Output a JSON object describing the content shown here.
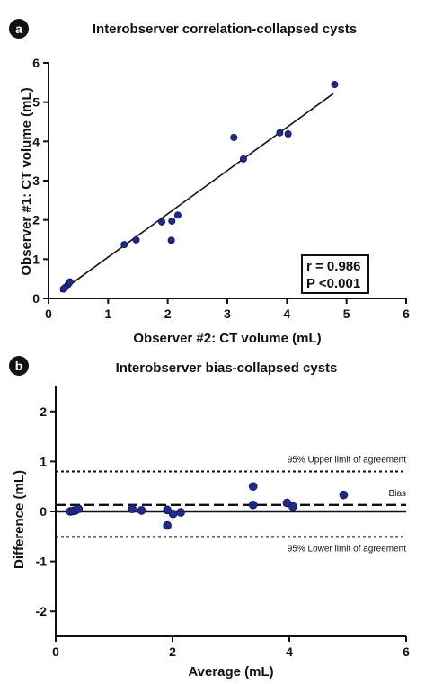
{
  "chart_data": [
    {
      "panel": "a",
      "type": "scatter",
      "title": "Interobserver correlation-collapsed cysts",
      "xlabel": "Observer #2: CT volume (mL)",
      "ylabel": "Observer #1: CT volume (mL)",
      "xlim": [
        0,
        6
      ],
      "ylim": [
        0,
        6
      ],
      "xticks": [
        "0",
        "1",
        "2",
        "3",
        "4",
        "5",
        "6"
      ],
      "yticks": [
        "0",
        "1",
        "2",
        "3",
        "4",
        "5",
        "6"
      ],
      "grid": false,
      "point_color": "#1f2a8c",
      "points": [
        {
          "x": 0.25,
          "y": 0.24
        },
        {
          "x": 0.28,
          "y": 0.28
        },
        {
          "x": 0.33,
          "y": 0.36
        },
        {
          "x": 0.36,
          "y": 0.42
        },
        {
          "x": 1.27,
          "y": 1.37
        },
        {
          "x": 1.47,
          "y": 1.49
        },
        {
          "x": 1.9,
          "y": 1.95
        },
        {
          "x": 2.07,
          "y": 1.97
        },
        {
          "x": 2.06,
          "y": 1.48
        },
        {
          "x": 2.17,
          "y": 2.12
        },
        {
          "x": 3.11,
          "y": 4.1
        },
        {
          "x": 3.27,
          "y": 3.55
        },
        {
          "x": 3.88,
          "y": 4.22
        },
        {
          "x": 4.02,
          "y": 4.19
        },
        {
          "x": 4.8,
          "y": 5.45
        }
      ],
      "fit_line": {
        "x": [
          0.2,
          4.78
        ],
        "y": [
          0.17,
          5.22
        ]
      },
      "stats": {
        "r": "r = 0.986",
        "p": "P <0.001"
      }
    },
    {
      "panel": "b",
      "type": "scatter",
      "title": "Interobserver bias-collapsed cysts",
      "xlabel": "Average (mL)",
      "ylabel": "Difference (mL)",
      "xlim": [
        0,
        6
      ],
      "ylim": [
        -2.5,
        2.5
      ],
      "xticks": [
        "0",
        "2",
        "4",
        "6"
      ],
      "yticks": [
        "-2",
        "-1",
        "0",
        "1",
        "2"
      ],
      "grid": false,
      "point_color": "#1f2a8c",
      "points": [
        {
          "x": 0.25,
          "y": 0.0
        },
        {
          "x": 0.3,
          "y": 0.01
        },
        {
          "x": 0.34,
          "y": 0.02
        },
        {
          "x": 0.39,
          "y": 0.05
        },
        {
          "x": 1.31,
          "y": 0.05
        },
        {
          "x": 1.47,
          "y": 0.02
        },
        {
          "x": 1.91,
          "y": 0.03
        },
        {
          "x": 1.91,
          "y": -0.28
        },
        {
          "x": 2.01,
          "y": -0.05
        },
        {
          "x": 2.14,
          "y": -0.02
        },
        {
          "x": 3.38,
          "y": 0.13
        },
        {
          "x": 3.38,
          "y": 0.5
        },
        {
          "x": 3.96,
          "y": 0.17
        },
        {
          "x": 4.06,
          "y": 0.1
        },
        {
          "x": 4.93,
          "y": 0.33
        }
      ],
      "zero_line": 0,
      "bias": {
        "value": 0.13,
        "label": "Bias"
      },
      "upper_loa": {
        "value": 0.8,
        "label": "95% Upper limit of agreement"
      },
      "lower_loa": {
        "value": -0.51,
        "label": "95% Lower limit of agreement"
      }
    }
  ]
}
